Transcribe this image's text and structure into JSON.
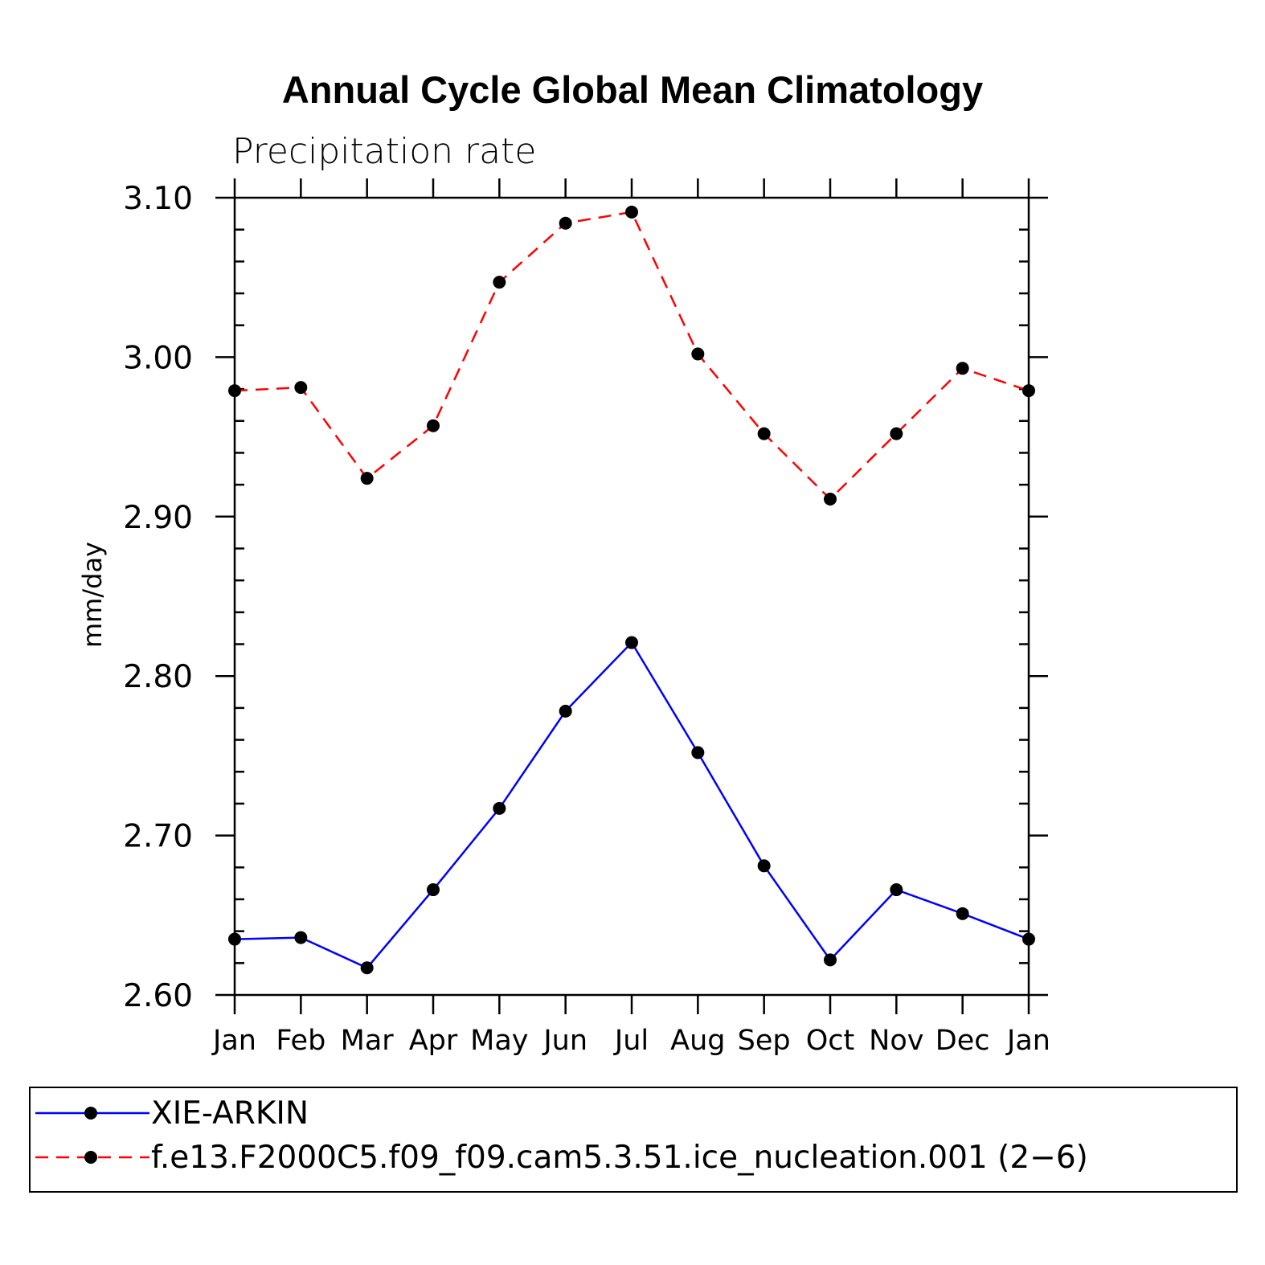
{
  "chart_data": {
    "type": "line",
    "title": "Annual Cycle Global Mean Climatology",
    "subtitle": "Precipitation rate",
    "xlabel": "",
    "ylabel": "mm/day",
    "categories": [
      "Jan",
      "Feb",
      "Mar",
      "Apr",
      "May",
      "Jun",
      "Jul",
      "Aug",
      "Sep",
      "Oct",
      "Nov",
      "Dec",
      "Jan"
    ],
    "ylim": [
      2.6,
      3.1
    ],
    "yticks": [
      "2.60",
      "2.70",
      "2.80",
      "2.90",
      "3.00",
      "3.10"
    ],
    "ytick_values": [
      2.6,
      2.7,
      2.8,
      2.9,
      3.0,
      3.1
    ],
    "grid": false,
    "legend_position": "bottom",
    "series": [
      {
        "name": "XIE-ARKIN",
        "color": "#0000ff",
        "dash": "solid",
        "marker": "filled-circle",
        "values": [
          2.635,
          2.636,
          2.617,
          2.666,
          2.717,
          2.778,
          2.821,
          2.752,
          2.681,
          2.622,
          2.666,
          2.651,
          2.635
        ]
      },
      {
        "name": "f.e13.F2000C5.f09_f09.cam5.3.51.ice_nucleation.001 (2−6)",
        "color": "#ff0000",
        "dash": "dashed",
        "marker": "filled-circle",
        "values": [
          2.979,
          2.981,
          2.924,
          2.957,
          3.047,
          3.084,
          3.091,
          3.002,
          2.952,
          2.911,
          2.952,
          2.993,
          2.979
        ]
      }
    ]
  }
}
